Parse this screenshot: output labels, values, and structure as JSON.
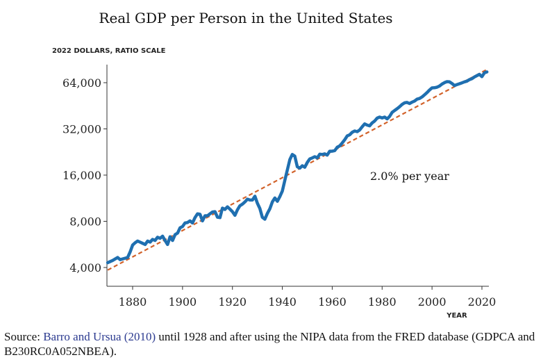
{
  "chart_data": {
    "type": "line",
    "title": "Real GDP per Person in the United States",
    "ylabel": "2022 DOLLARS, RATIO SCALE",
    "xlabel": "YEAR",
    "yscale": "log",
    "xlim": [
      1870,
      2022
    ],
    "ylim": [
      3400,
      82000
    ],
    "x_ticks": [
      1880,
      1900,
      1920,
      1940,
      1960,
      1980,
      2000,
      2020
    ],
    "x_tick_labels": [
      "1880",
      "1900",
      "1920",
      "1940",
      "1960",
      "1980",
      "2000",
      "2020"
    ],
    "y_ticks": [
      4000,
      8000,
      16000,
      32000,
      64000
    ],
    "y_tick_labels": [
      "4,000",
      "8,000",
      "16,000",
      "32,000",
      "64,000"
    ],
    "grid": false,
    "annotation": "2.0% per year",
    "colors": {
      "series": "#1f6fb0",
      "trend": "#d2622a"
    },
    "series": [
      {
        "style": "solid",
        "x": [
          1870,
          1872,
          1874,
          1875,
          1877,
          1878,
          1879,
          1880,
          1881,
          1882,
          1883,
          1884,
          1885,
          1886,
          1887,
          1888,
          1889,
          1890,
          1891,
          1892,
          1893,
          1894,
          1895,
          1896,
          1897,
          1898,
          1899,
          1900,
          1901,
          1902,
          1903,
          1904,
          1905,
          1906,
          1907,
          1908,
          1909,
          1910,
          1911,
          1912,
          1913,
          1914,
          1915,
          1916,
          1917,
          1918,
          1919,
          1920,
          1921,
          1922,
          1923,
          1924,
          1925,
          1926,
          1927,
          1928,
          1929,
          1930,
          1931,
          1932,
          1933,
          1934,
          1935,
          1936,
          1937,
          1938,
          1939,
          1940,
          1941,
          1942,
          1943,
          1944,
          1945,
          1946,
          1947,
          1948,
          1949,
          1950,
          1951,
          1952,
          1953,
          1954,
          1955,
          1956,
          1957,
          1958,
          1959,
          1960,
          1961,
          1962,
          1963,
          1964,
          1965,
          1966,
          1967,
          1968,
          1969,
          1970,
          1971,
          1972,
          1973,
          1974,
          1975,
          1976,
          1977,
          1978,
          1979,
          1980,
          1981,
          1982,
          1983,
          1984,
          1985,
          1986,
          1987,
          1988,
          1989,
          1990,
          1991,
          1992,
          1993,
          1994,
          1995,
          1996,
          1997,
          1998,
          1999,
          2000,
          2001,
          2002,
          2003,
          2004,
          2005,
          2006,
          2007,
          2008,
          2009,
          2010,
          2011,
          2012,
          2013,
          2014,
          2015,
          2016,
          2017,
          2018,
          2019,
          2020,
          2021,
          2022
        ],
        "values": [
          4300,
          4450,
          4650,
          4500,
          4600,
          4650,
          5050,
          5600,
          5800,
          5950,
          5850,
          5750,
          5650,
          5950,
          5850,
          6100,
          6000,
          6300,
          6200,
          6400,
          6000,
          5650,
          6350,
          6000,
          6550,
          6700,
          7250,
          7400,
          7800,
          7850,
          8050,
          7800,
          8450,
          8950,
          8900,
          8050,
          8700,
          8700,
          8950,
          9200,
          9250,
          8500,
          8450,
          9750,
          9550,
          9950,
          9600,
          9250,
          8750,
          9500,
          10100,
          10350,
          10700,
          11150,
          11000,
          11000,
          11650,
          10500,
          9700,
          8500,
          8250,
          9000,
          9650,
          10700,
          11350,
          10800,
          11600,
          12600,
          14800,
          17300,
          20200,
          21800,
          21300,
          18150,
          17750,
          18400,
          18000,
          19350,
          20400,
          20700,
          21100,
          20700,
          21900,
          21800,
          22000,
          21600,
          22900,
          22900,
          23100,
          24300,
          24800,
          25900,
          27200,
          28800,
          29300,
          30400,
          31000,
          30700,
          31500,
          33000,
          34500,
          33900,
          33500,
          35000,
          36000,
          37600,
          38200,
          37700,
          38200,
          37200,
          38600,
          41000,
          42200,
          43300,
          44600,
          46200,
          47300,
          47600,
          46800,
          47800,
          48600,
          50000,
          50500,
          51700,
          53400,
          55200,
          57300,
          59200,
          59300,
          59800,
          60900,
          62700,
          64100,
          65000,
          64800,
          63300,
          61300,
          62200,
          63000,
          63900,
          64800,
          65500,
          67000,
          67900,
          69700,
          71100,
          72500,
          70100,
          74200,
          75200
        ]
      },
      {
        "style": "dashed",
        "label": "2.0% per year",
        "x": [
          1870,
          2022
        ],
        "values": [
          3850,
          78000
        ]
      }
    ]
  },
  "source": {
    "prefix": "Source: ",
    "link_text": "Barro and Ursua (2010)",
    "suffix": " until 1928 and after using the NIPA data from the FRED database (GDPCA and B230RC0A052NBEA)."
  }
}
